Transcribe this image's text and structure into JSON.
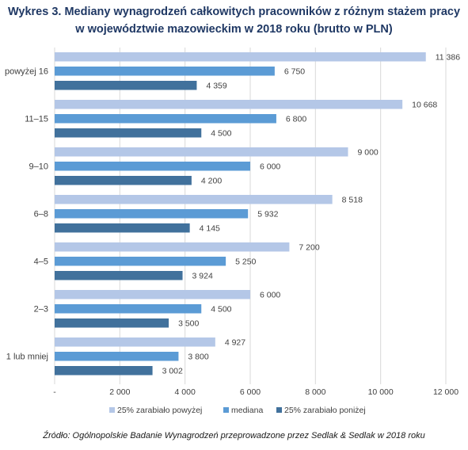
{
  "chart_data": {
    "type": "bar",
    "orientation": "horizontal",
    "title_lines": [
      "Wykres 3. Mediany wynagrodzeń całkowitych pracowników z różnym stażem pracy",
      "w województwie mazowieckim w 2018 roku (brutto w PLN)"
    ],
    "categories": [
      "powyżej 16",
      "11–15",
      "9–10",
      "6–8",
      "4–5",
      "2–3",
      "1 lub mniej"
    ],
    "series": [
      {
        "name": "25% zarabiało powyżej",
        "color": "#b4c7e7",
        "values": [
          11386,
          10668,
          9000,
          8518,
          7200,
          6000,
          4927
        ],
        "labels": [
          "11 386",
          "10 668",
          "9 000",
          "8 518",
          "7 200",
          "6 000",
          "4 927"
        ]
      },
      {
        "name": "mediana",
        "color": "#5b9bd5",
        "values": [
          6750,
          6800,
          6000,
          5932,
          5250,
          4500,
          3800
        ],
        "labels": [
          "6 750",
          "6 800",
          "6 000",
          "5 932",
          "5 250",
          "4 500",
          "3 800"
        ]
      },
      {
        "name": "25% zarabiało poniżej",
        "color": "#41719c",
        "values": [
          4359,
          4500,
          4200,
          4145,
          3924,
          3500,
          3002
        ],
        "labels": [
          "4 359",
          "4 500",
          "4 200",
          "4 145",
          "3 924",
          "3 500",
          "3 002"
        ]
      }
    ],
    "xlim": [
      0,
      12000
    ],
    "xticks": [
      0,
      2000,
      4000,
      6000,
      8000,
      10000,
      12000
    ],
    "xtick_labels": [
      "-",
      "2 000",
      "4 000",
      "6 000",
      "8 000",
      "10 000",
      "12 000"
    ],
    "gridlines": true,
    "legend_position": "bottom"
  },
  "source_note": "Źródło: Ogólnopolskie Badanie Wynagrodzeń przeprowadzone przez Sedlak & Sedlak w 2018 roku"
}
